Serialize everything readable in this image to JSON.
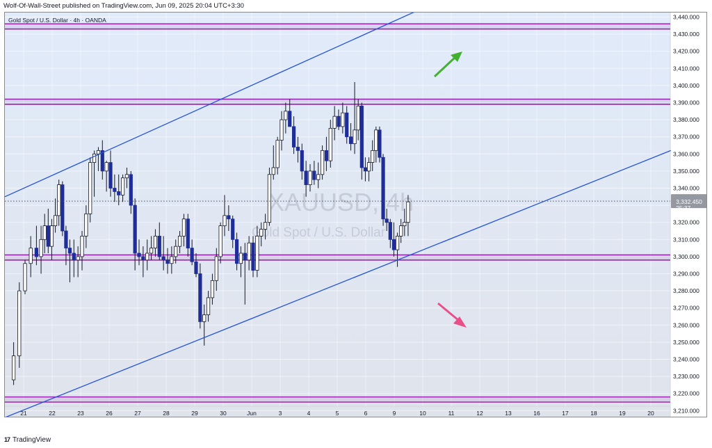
{
  "header": {
    "published_line": "Wolf-Of-Wall-Street published on TradingView.com, Jun 09, 2025 20:04 UTC+3:30"
  },
  "legend": {
    "symbol_line": "Gold Spot / U.S. Dollar · 4h · OANDA"
  },
  "watermark": {
    "ticker": "XAUUSD, 4h",
    "description": "Gold Spot / U.S. Dollar"
  },
  "price_label": {
    "price": "3,332.450",
    "countdown": "25:37",
    "color": "#9598a1"
  },
  "footer": {
    "brand": "TradingView",
    "logo_glyph": "17"
  },
  "colors": {
    "bullish_body": "#ffffff",
    "bearish_body": "#1f2e96",
    "wick": "#131722",
    "channel_line": "#2453d9",
    "zone_line": "#9c27b0",
    "background_upper": "#e1ebfa",
    "background_lower": "#dfe3ec",
    "arrow_up": "#44b030",
    "arrow_down": "#e8508a"
  },
  "chart_data": {
    "type": "candlestick",
    "title": "Gold Spot / U.S. Dollar · 4h · OANDA",
    "y_ticks": [
      3210,
      3220,
      3230,
      3240,
      3250,
      3260,
      3270,
      3280,
      3290,
      3300,
      3310,
      3320,
      3330,
      3340,
      3350,
      3360,
      3370,
      3380,
      3390,
      3400,
      3410,
      3420,
      3430,
      3440
    ],
    "y_tick_labels": [
      "3,210.000",
      "3,220.000",
      "3,230.000",
      "3,240.000",
      "3,250.000",
      "3,260.000",
      "3,270.000",
      "3,280.000",
      "3,290.000",
      "3,300.000",
      "3,310.000",
      "3,320.000",
      "3,330.000",
      "3,340.000",
      "3,350.000",
      "3,360.000",
      "3,370.000",
      "3,380.000",
      "3,390.000",
      "3,400.000",
      "3,410.000",
      "3,420.000",
      "3,430.000",
      "3,440.000"
    ],
    "ylim": [
      3205,
      3443
    ],
    "x_labels": [
      "21",
      "22",
      "23",
      "26",
      "27",
      "28",
      "29",
      "30",
      "Jun",
      "3",
      "4",
      "5",
      "6",
      "9",
      "10",
      "11",
      "12",
      "13",
      "16",
      "17",
      "18",
      "19",
      "20"
    ],
    "candles": [
      {
        "d": 0,
        "o": 3228,
        "h": 3250,
        "l": 3225,
        "c": 3242
      },
      {
        "d": 0,
        "o": 3242,
        "h": 3285,
        "l": 3235,
        "c": 3280
      },
      {
        "d": 0,
        "o": 3280,
        "h": 3298,
        "l": 3278,
        "c": 3296
      },
      {
        "d": 0,
        "o": 3296,
        "h": 3312,
        "l": 3288,
        "c": 3305
      },
      {
        "d": 0,
        "o": 3305,
        "h": 3318,
        "l": 3295,
        "c": 3300
      },
      {
        "d": 1,
        "o": 3300,
        "h": 3318,
        "l": 3290,
        "c": 3310
      },
      {
        "d": 1,
        "o": 3310,
        "h": 3325,
        "l": 3302,
        "c": 3318
      },
      {
        "d": 1,
        "o": 3318,
        "h": 3328,
        "l": 3302,
        "c": 3306
      },
      {
        "d": 1,
        "o": 3306,
        "h": 3322,
        "l": 3298,
        "c": 3318
      },
      {
        "d": 1,
        "o": 3318,
        "h": 3334,
        "l": 3314,
        "c": 3324
      },
      {
        "d": 1,
        "o": 3324,
        "h": 3345,
        "l": 3318,
        "c": 3342
      },
      {
        "d": 1,
        "o": 3342,
        "h": 3344,
        "l": 3312,
        "c": 3315
      },
      {
        "d": 1,
        "o": 3315,
        "h": 3318,
        "l": 3295,
        "c": 3305
      },
      {
        "d": 2,
        "o": 3305,
        "h": 3310,
        "l": 3285,
        "c": 3302
      },
      {
        "d": 2,
        "o": 3302,
        "h": 3310,
        "l": 3288,
        "c": 3298
      },
      {
        "d": 2,
        "o": 3298,
        "h": 3306,
        "l": 3288,
        "c": 3300
      },
      {
        "d": 2,
        "o": 3300,
        "h": 3315,
        "l": 3292,
        "c": 3312
      },
      {
        "d": 2,
        "o": 3312,
        "h": 3330,
        "l": 3305,
        "c": 3325
      },
      {
        "d": 2,
        "o": 3325,
        "h": 3358,
        "l": 3320,
        "c": 3355
      },
      {
        "d": 2,
        "o": 3355,
        "h": 3362,
        "l": 3335,
        "c": 3360
      },
      {
        "d": 3,
        "o": 3360,
        "h": 3364,
        "l": 3350,
        "c": 3362
      },
      {
        "d": 3,
        "o": 3362,
        "h": 3368,
        "l": 3345,
        "c": 3350
      },
      {
        "d": 3,
        "o": 3350,
        "h": 3356,
        "l": 3338,
        "c": 3355
      },
      {
        "d": 3,
        "o": 3355,
        "h": 3362,
        "l": 3335,
        "c": 3340
      },
      {
        "d": 3,
        "o": 3340,
        "h": 3348,
        "l": 3332,
        "c": 3338
      },
      {
        "d": 3,
        "o": 3338,
        "h": 3348,
        "l": 3330,
        "c": 3336
      },
      {
        "d": 3,
        "o": 3336,
        "h": 3348,
        "l": 3332,
        "c": 3346
      },
      {
        "d": 4,
        "o": 3346,
        "h": 3352,
        "l": 3340,
        "c": 3348
      },
      {
        "d": 4,
        "o": 3348,
        "h": 3350,
        "l": 3325,
        "c": 3330
      },
      {
        "d": 4,
        "o": 3330,
        "h": 3334,
        "l": 3292,
        "c": 3302
      },
      {
        "d": 4,
        "o": 3302,
        "h": 3310,
        "l": 3295,
        "c": 3300
      },
      {
        "d": 4,
        "o": 3300,
        "h": 3306,
        "l": 3288,
        "c": 3298
      },
      {
        "d": 4,
        "o": 3298,
        "h": 3310,
        "l": 3292,
        "c": 3302
      },
      {
        "d": 4,
        "o": 3302,
        "h": 3312,
        "l": 3298,
        "c": 3305
      },
      {
        "d": 5,
        "o": 3305,
        "h": 3316,
        "l": 3300,
        "c": 3312
      },
      {
        "d": 5,
        "o": 3312,
        "h": 3320,
        "l": 3298,
        "c": 3300
      },
      {
        "d": 5,
        "o": 3300,
        "h": 3312,
        "l": 3292,
        "c": 3298
      },
      {
        "d": 5,
        "o": 3298,
        "h": 3305,
        "l": 3290,
        "c": 3296
      },
      {
        "d": 5,
        "o": 3296,
        "h": 3306,
        "l": 3290,
        "c": 3300
      },
      {
        "d": 5,
        "o": 3300,
        "h": 3310,
        "l": 3296,
        "c": 3306
      },
      {
        "d": 5,
        "o": 3306,
        "h": 3315,
        "l": 3302,
        "c": 3312
      },
      {
        "d": 6,
        "o": 3312,
        "h": 3325,
        "l": 3306,
        "c": 3322
      },
      {
        "d": 6,
        "o": 3322,
        "h": 3325,
        "l": 3300,
        "c": 3305
      },
      {
        "d": 6,
        "o": 3305,
        "h": 3310,
        "l": 3295,
        "c": 3297
      },
      {
        "d": 6,
        "o": 3297,
        "h": 3302,
        "l": 3288,
        "c": 3290
      },
      {
        "d": 6,
        "o": 3290,
        "h": 3296,
        "l": 3258,
        "c": 3262
      },
      {
        "d": 6,
        "o": 3262,
        "h": 3272,
        "l": 3248,
        "c": 3266
      },
      {
        "d": 6,
        "o": 3266,
        "h": 3280,
        "l": 3262,
        "c": 3276
      },
      {
        "d": 7,
        "o": 3276,
        "h": 3290,
        "l": 3272,
        "c": 3286
      },
      {
        "d": 7,
        "o": 3286,
        "h": 3305,
        "l": 3280,
        "c": 3300
      },
      {
        "d": 7,
        "o": 3300,
        "h": 3320,
        "l": 3296,
        "c": 3318
      },
      {
        "d": 7,
        "o": 3318,
        "h": 3336,
        "l": 3312,
        "c": 3324
      },
      {
        "d": 7,
        "o": 3324,
        "h": 3330,
        "l": 3315,
        "c": 3322
      },
      {
        "d": 7,
        "o": 3322,
        "h": 3324,
        "l": 3305,
        "c": 3310
      },
      {
        "d": 7,
        "o": 3310,
        "h": 3314,
        "l": 3292,
        "c": 3296
      },
      {
        "d": 8,
        "o": 3296,
        "h": 3306,
        "l": 3288,
        "c": 3302
      },
      {
        "d": 8,
        "o": 3302,
        "h": 3308,
        "l": 3272,
        "c": 3298
      },
      {
        "d": 8,
        "o": 3298,
        "h": 3312,
        "l": 3292,
        "c": 3308
      },
      {
        "d": 8,
        "o": 3308,
        "h": 3312,
        "l": 3288,
        "c": 3292
      },
      {
        "d": 8,
        "o": 3292,
        "h": 3318,
        "l": 3288,
        "c": 3312
      },
      {
        "d": 8,
        "o": 3312,
        "h": 3320,
        "l": 3306,
        "c": 3316
      },
      {
        "d": 8,
        "o": 3316,
        "h": 3325,
        "l": 3310,
        "c": 3320
      },
      {
        "d": 9,
        "o": 3320,
        "h": 3352,
        "l": 3318,
        "c": 3348
      },
      {
        "d": 9,
        "o": 3348,
        "h": 3365,
        "l": 3345,
        "c": 3352
      },
      {
        "d": 9,
        "o": 3352,
        "h": 3370,
        "l": 3348,
        "c": 3368
      },
      {
        "d": 9,
        "o": 3368,
        "h": 3385,
        "l": 3362,
        "c": 3380
      },
      {
        "d": 9,
        "o": 3380,
        "h": 3390,
        "l": 3372,
        "c": 3385
      },
      {
        "d": 9,
        "o": 3385,
        "h": 3392,
        "l": 3378,
        "c": 3376
      },
      {
        "d": 9,
        "o": 3376,
        "h": 3382,
        "l": 3360,
        "c": 3364
      },
      {
        "d": 10,
        "o": 3364,
        "h": 3370,
        "l": 3355,
        "c": 3362
      },
      {
        "d": 10,
        "o": 3362,
        "h": 3366,
        "l": 3345,
        "c": 3350
      },
      {
        "d": 10,
        "o": 3350,
        "h": 3356,
        "l": 3335,
        "c": 3342
      },
      {
        "d": 10,
        "o": 3342,
        "h": 3354,
        "l": 3338,
        "c": 3350
      },
      {
        "d": 10,
        "o": 3350,
        "h": 3356,
        "l": 3342,
        "c": 3345
      },
      {
        "d": 10,
        "o": 3345,
        "h": 3355,
        "l": 3340,
        "c": 3348
      },
      {
        "d": 10,
        "o": 3348,
        "h": 3365,
        "l": 3345,
        "c": 3362
      },
      {
        "d": 11,
        "o": 3362,
        "h": 3370,
        "l": 3350,
        "c": 3356
      },
      {
        "d": 11,
        "o": 3356,
        "h": 3380,
        "l": 3352,
        "c": 3375
      },
      {
        "d": 11,
        "o": 3375,
        "h": 3388,
        "l": 3368,
        "c": 3382
      },
      {
        "d": 11,
        "o": 3382,
        "h": 3386,
        "l": 3374,
        "c": 3376
      },
      {
        "d": 11,
        "o": 3376,
        "h": 3390,
        "l": 3372,
        "c": 3384
      },
      {
        "d": 11,
        "o": 3384,
        "h": 3388,
        "l": 3366,
        "c": 3370
      },
      {
        "d": 11,
        "o": 3370,
        "h": 3378,
        "l": 3362,
        "c": 3366
      },
      {
        "d": 12,
        "o": 3366,
        "h": 3402,
        "l": 3360,
        "c": 3374
      },
      {
        "d": 12,
        "o": 3374,
        "h": 3392,
        "l": 3368,
        "c": 3388
      },
      {
        "d": 12,
        "o": 3388,
        "h": 3390,
        "l": 3345,
        "c": 3352
      },
      {
        "d": 12,
        "o": 3352,
        "h": 3358,
        "l": 3344,
        "c": 3350
      },
      {
        "d": 12,
        "o": 3350,
        "h": 3358,
        "l": 3344,
        "c": 3355
      },
      {
        "d": 12,
        "o": 3355,
        "h": 3368,
        "l": 3350,
        "c": 3362
      },
      {
        "d": 12,
        "o": 3362,
        "h": 3376,
        "l": 3355,
        "c": 3374
      },
      {
        "d": 12,
        "o": 3374,
        "h": 3376,
        "l": 3355,
        "c": 3358
      },
      {
        "d": 13,
        "o": 3358,
        "h": 3360,
        "l": 3318,
        "c": 3322
      },
      {
        "d": 13,
        "o": 3322,
        "h": 3328,
        "l": 3315,
        "c": 3320
      },
      {
        "d": 13,
        "o": 3320,
        "h": 3322,
        "l": 3305,
        "c": 3310
      },
      {
        "d": 13,
        "o": 3310,
        "h": 3320,
        "l": 3300,
        "c": 3304
      },
      {
        "d": 13,
        "o": 3304,
        "h": 3314,
        "l": 3294,
        "c": 3312
      },
      {
        "d": 13,
        "o": 3312,
        "h": 3322,
        "l": 3308,
        "c": 3318
      },
      {
        "d": 13,
        "o": 3318,
        "h": 3328,
        "l": 3312,
        "c": 3320
      },
      {
        "d": 13,
        "o": 3320,
        "h": 3336,
        "l": 3312,
        "c": 3332
      }
    ],
    "horizontal_zones": [
      {
        "price_low": 3433,
        "price_high": 3436
      },
      {
        "price_low": 3389,
        "price_high": 3392
      },
      {
        "price_low": 3298,
        "price_high": 3301
      },
      {
        "price_low": 3215,
        "price_high": 3218
      }
    ],
    "channel_upper": {
      "start_day": 0,
      "start_price": 3335,
      "end_day": 18.1,
      "end_price": 3476
    },
    "channel_lower": {
      "start_day": 0,
      "start_price": 3206,
      "end_day": 22.7,
      "end_price": 3362
    },
    "current_price": 3332.45
  }
}
